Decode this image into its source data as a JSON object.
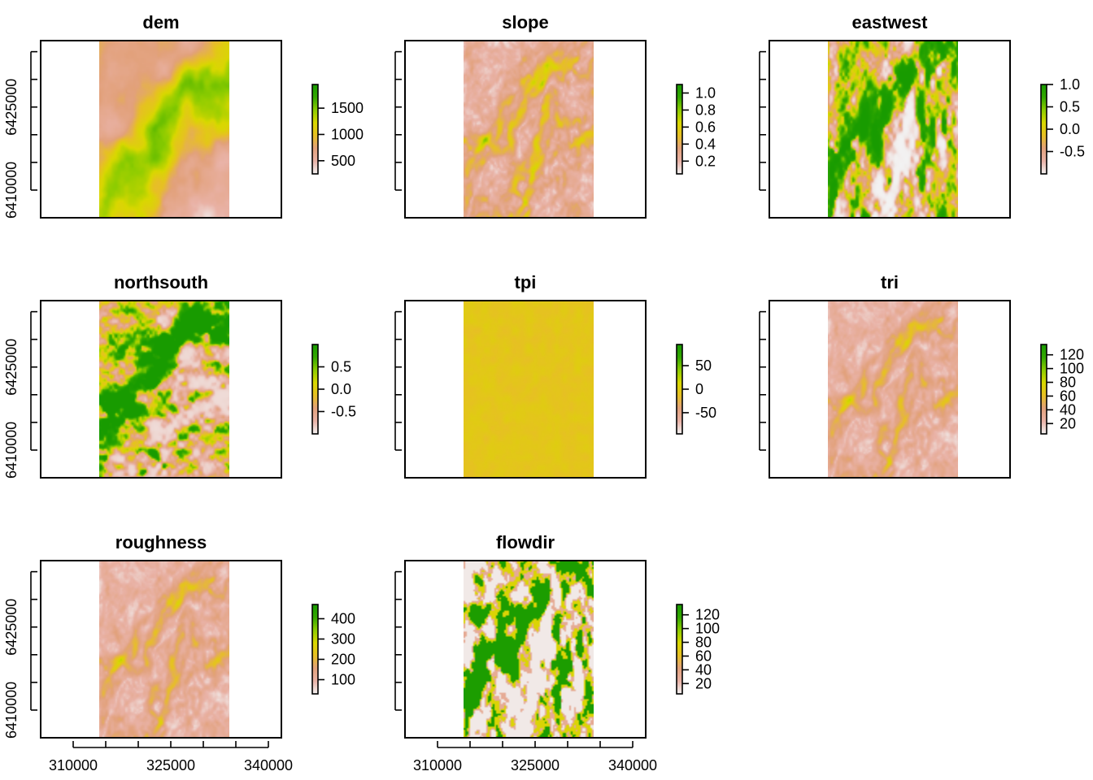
{
  "figure": {
    "palette": [
      "#f2f2f2",
      "#e9b2a6",
      "#e2a17b",
      "#e7c024",
      "#d9d800",
      "#8ccc00",
      "#33a800",
      "#189b00"
    ]
  },
  "chart_data": [
    {
      "type": "heatmap",
      "title": "dem",
      "pattern": "dem",
      "xlim": [
        305000,
        342000
      ],
      "ylim": [
        6405000,
        6437000
      ],
      "raster_extent": {
        "x": [
          314000,
          334000
        ],
        "y": [
          6405000,
          6437000
        ]
      },
      "xticks": [
        310000,
        325000,
        340000
      ],
      "yticks": [
        6410000,
        6425000
      ],
      "legend": {
        "range": [
          250,
          1950
        ],
        "ticks": [
          500,
          1000,
          1500
        ]
      },
      "show_xlabels": false,
      "show_ylabels": true
    },
    {
      "type": "heatmap",
      "title": "slope",
      "pattern": "slope",
      "xlim": [
        305000,
        342000
      ],
      "ylim": [
        6405000,
        6437000
      ],
      "raster_extent": {
        "x": [
          314000,
          334000
        ],
        "y": [
          6405000,
          6437000
        ]
      },
      "xticks": [
        310000,
        325000,
        340000
      ],
      "yticks": [
        6410000,
        6425000
      ],
      "legend": {
        "range": [
          0.05,
          1.1
        ],
        "ticks": [
          "0.2",
          "0.4",
          "0.6",
          "0.8",
          "1.0"
        ]
      },
      "show_xlabels": false,
      "show_ylabels": false
    },
    {
      "type": "heatmap",
      "title": "eastwest",
      "pattern": "aspect",
      "xlim": [
        305000,
        342000
      ],
      "ylim": [
        6405000,
        6437000
      ],
      "raster_extent": {
        "x": [
          314000,
          334000
        ],
        "y": [
          6405000,
          6437000
        ]
      },
      "xticks": [
        310000,
        325000,
        340000
      ],
      "yticks": [
        6410000,
        6425000
      ],
      "legend": {
        "range": [
          -1.0,
          1.0
        ],
        "ticks": [
          "-0.5",
          "0.0",
          "0.5",
          "1.0"
        ]
      },
      "show_xlabels": false,
      "show_ylabels": false
    },
    {
      "type": "heatmap",
      "title": "northsouth",
      "pattern": "aspect2",
      "xlim": [
        305000,
        342000
      ],
      "ylim": [
        6405000,
        6437000
      ],
      "raster_extent": {
        "x": [
          314000,
          334000
        ],
        "y": [
          6405000,
          6437000
        ]
      },
      "xticks": [
        310000,
        325000,
        340000
      ],
      "yticks": [
        6410000,
        6425000
      ],
      "legend": {
        "range": [
          -1.0,
          1.0
        ],
        "ticks": [
          "-0.5",
          "0.0",
          "0.5"
        ]
      },
      "show_xlabels": false,
      "show_ylabels": true
    },
    {
      "type": "heatmap",
      "title": "tpi",
      "pattern": "tpi",
      "xlim": [
        305000,
        342000
      ],
      "ylim": [
        6405000,
        6437000
      ],
      "raster_extent": {
        "x": [
          314000,
          334000
        ],
        "y": [
          6405000,
          6437000
        ]
      },
      "xticks": [
        310000,
        325000,
        340000
      ],
      "yticks": [
        6410000,
        6425000
      ],
      "legend": {
        "range": [
          -95,
          95
        ],
        "ticks": [
          "-50",
          "0",
          "50"
        ]
      },
      "show_xlabels": false,
      "show_ylabels": false
    },
    {
      "type": "heatmap",
      "title": "tri",
      "pattern": "tri",
      "xlim": [
        305000,
        342000
      ],
      "ylim": [
        6405000,
        6437000
      ],
      "raster_extent": {
        "x": [
          314000,
          334000
        ],
        "y": [
          6405000,
          6437000
        ]
      },
      "xticks": [
        310000,
        325000,
        340000
      ],
      "yticks": [
        6410000,
        6425000
      ],
      "legend": {
        "range": [
          5,
          135
        ],
        "ticks": [
          "20",
          "40",
          "60",
          "80",
          "100",
          "120"
        ]
      },
      "show_xlabels": false,
      "show_ylabels": false
    },
    {
      "type": "heatmap",
      "title": "roughness",
      "pattern": "tri",
      "xlim": [
        305000,
        342000
      ],
      "ylim": [
        6405000,
        6437000
      ],
      "raster_extent": {
        "x": [
          314000,
          334000
        ],
        "y": [
          6405000,
          6437000
        ]
      },
      "xticks": [
        310000,
        325000,
        340000
      ],
      "yticks": [
        6410000,
        6425000
      ],
      "legend": {
        "range": [
          30,
          470
        ],
        "ticks": [
          "100",
          "200",
          "300",
          "400"
        ]
      },
      "show_xlabels": true,
      "show_ylabels": true
    },
    {
      "type": "heatmap",
      "title": "flowdir",
      "pattern": "flow",
      "xlim": [
        305000,
        342000
      ],
      "ylim": [
        6405000,
        6437000
      ],
      "raster_extent": {
        "x": [
          314000,
          334000
        ],
        "y": [
          6405000,
          6437000
        ]
      },
      "xticks": [
        310000,
        325000,
        340000
      ],
      "yticks": [
        6410000,
        6425000
      ],
      "legend": {
        "range": [
          5,
          135
        ],
        "ticks": [
          "20",
          "40",
          "60",
          "80",
          "100",
          "120"
        ]
      },
      "show_xlabels": true,
      "show_ylabels": false
    }
  ]
}
